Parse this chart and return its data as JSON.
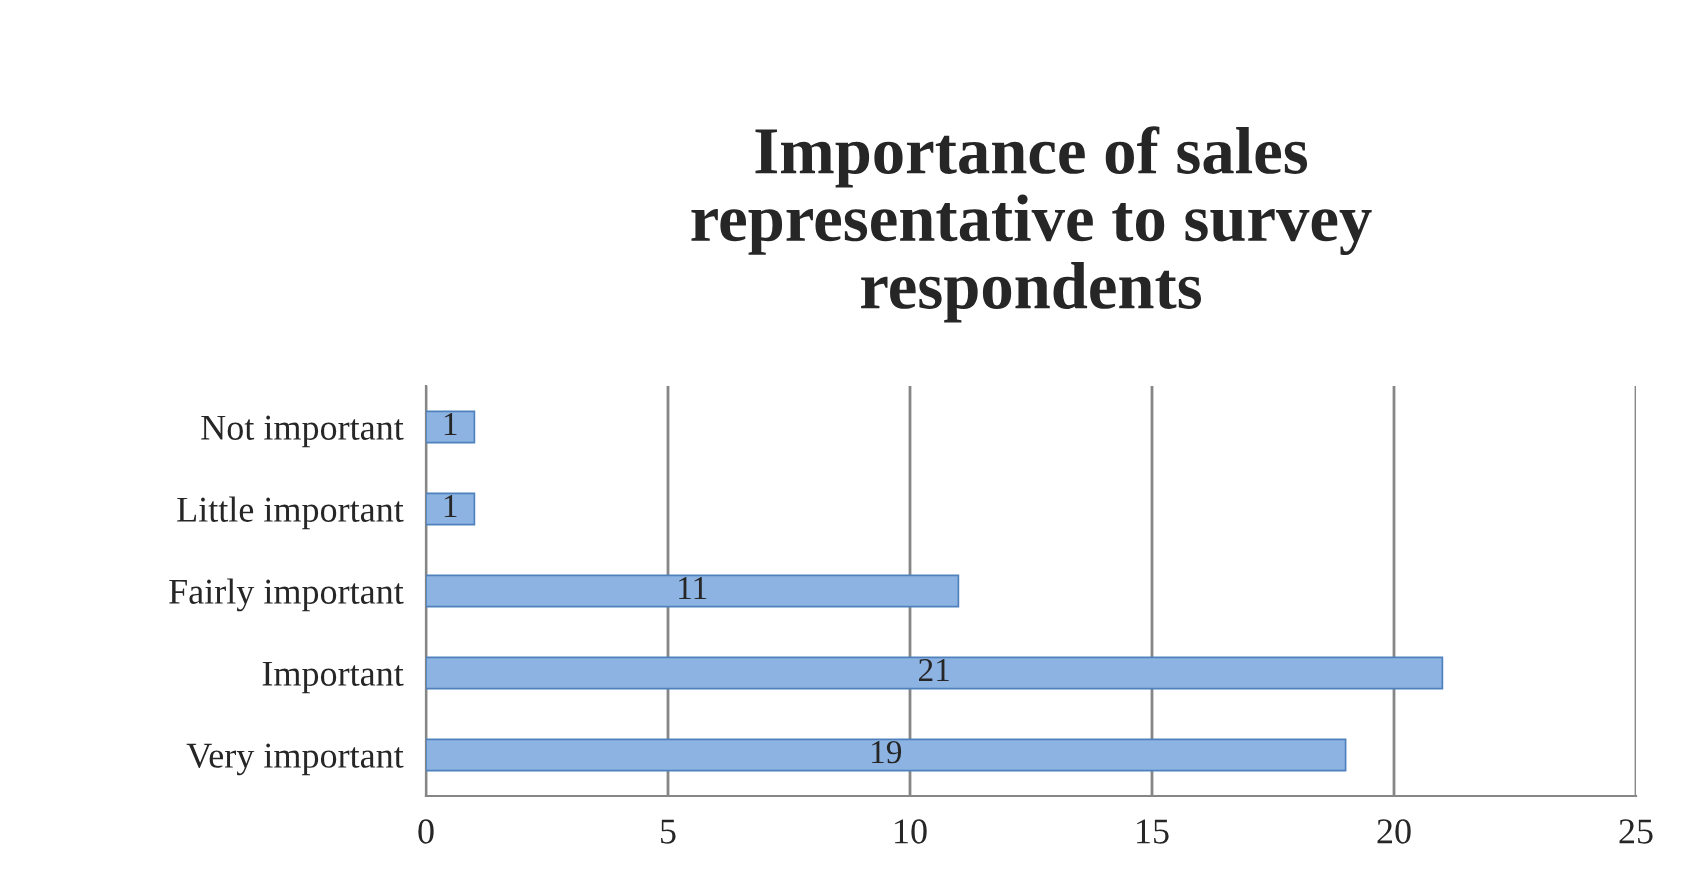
{
  "chart_data": {
    "type": "bar",
    "orientation": "horizontal",
    "title": "Importance of sales\nrepresentative to survey\nrespondents",
    "categories": [
      "Not important",
      "Little important",
      "Fairly important",
      "Important",
      "Very important"
    ],
    "values": [
      1,
      1,
      11,
      21,
      19
    ],
    "color": "#8db3e2",
    "data_labels": true,
    "xlim": [
      0,
      25
    ],
    "xticks": [
      0,
      5,
      10,
      15,
      20,
      25
    ],
    "grid": "x",
    "legend": false
  }
}
